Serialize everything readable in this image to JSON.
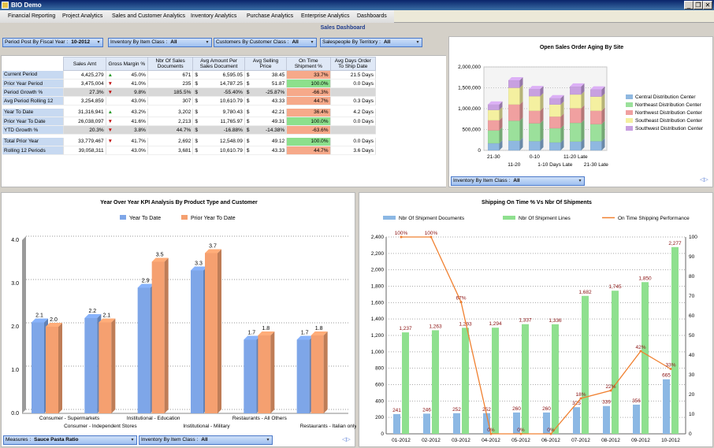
{
  "window": {
    "title": "BIO Demo",
    "minimize": "_",
    "restore": "❐",
    "close": "✕"
  },
  "menu": [
    "Financial Reporting",
    "Project Analytics",
    "Sales and Customer Analytics",
    "Inventory Analytics",
    "Purchase Analytics",
    "Enterprise Analytics",
    "Dashboards"
  ],
  "page_title": "Sales Dashboard",
  "filters": {
    "period": {
      "label": "Period Post By Fiscal Year :",
      "value": "10-2012"
    },
    "item_class": {
      "label": "Inventory By Item Class :",
      "value": "All"
    },
    "customer_class": {
      "label": "Customers By Customer Class :",
      "value": "All"
    },
    "salespeople": {
      "label": "Salespeople By Territory :",
      "value": "All"
    },
    "aging_item_class": {
      "label": "Inventory By Item Class :",
      "value": "All"
    },
    "measures": {
      "label": "Measures :",
      "value": "Sauce Pasta Ratio"
    },
    "yoy_item_class": {
      "label": "Inventory By Item Class :",
      "value": "All"
    }
  },
  "kpi_table": {
    "headers": [
      "Sales Amt",
      "Gross Margin %",
      "Nbr Of Sales Documents",
      "Avg Amount Per Sales Document",
      "Avg Selling Price",
      "On Time Shipment %",
      "Avg Days Order To Ship Date"
    ],
    "rows": [
      {
        "label": "Current Period",
        "sales": "4,425,279",
        "arrow": "up",
        "gm": "45.0%",
        "docs": "671",
        "cur1": "$",
        "avg_doc": "6,595.05",
        "cur2": "$",
        "asp": "38.45",
        "ontime": "33.7%",
        "days": "21.5 Days"
      },
      {
        "label": "Prior Year Period",
        "sales": "3,475,004",
        "arrow": "down",
        "gm": "41.0%",
        "docs": "235",
        "cur1": "$",
        "avg_doc": "14,787.25",
        "cur2": "$",
        "asp": "51.87",
        "ontime": "100.0%",
        "days": "0.0 Days"
      },
      {
        "label": "Period Growth %",
        "sales": "27.3%",
        "arrow": "down",
        "gm": "9.8%",
        "docs": "185.5%",
        "cur1": "$",
        "avg_doc": "-55.40%",
        "cur2": "$",
        "asp": "-25.87%",
        "ontime": "-66.3%",
        "days": ""
      },
      {
        "label": "Avg Period Rolling 12",
        "sales": "3,254,859",
        "arrow": "",
        "gm": "43.0%",
        "docs": "307",
        "cur1": "$",
        "avg_doc": "10,610.79",
        "cur2": "$",
        "asp": "43.33",
        "ontime": "44.7%",
        "days": "0.3 Days"
      },
      {
        "label": "Year To Date",
        "sales": "31,316,941",
        "arrow": "up",
        "gm": "43.2%",
        "docs": "3,202",
        "cur1": "$",
        "avg_doc": "9,780.43",
        "cur2": "$",
        "asp": "42.21",
        "ontime": "36.4%",
        "days": "4.2 Days"
      },
      {
        "label": "Prior Year To Date",
        "sales": "26,038,097",
        "arrow": "down",
        "gm": "41.6%",
        "docs": "2,213",
        "cur1": "$",
        "avg_doc": "11,765.97",
        "cur2": "$",
        "asp": "49.31",
        "ontime": "100.0%",
        "days": "0.0 Days"
      },
      {
        "label": "YTD Growth %",
        "sales": "20.3%",
        "arrow": "down",
        "gm": "3.8%",
        "docs": "44.7%",
        "cur1": "$",
        "avg_doc": "-16.88%",
        "cur2": "$",
        "asp": "-14.38%",
        "ontime": "-63.6%",
        "days": ""
      },
      {
        "label": "Total Prior Year",
        "sales": "33,779,467",
        "arrow": "down",
        "gm": "41.7%",
        "docs": "2,692",
        "cur1": "$",
        "avg_doc": "12,548.09",
        "cur2": "$",
        "asp": "49.12",
        "ontime": "100.0%",
        "days": "0.0 Days"
      },
      {
        "label": "Rolling 12 Periods",
        "sales": "39,058,311",
        "arrow": "",
        "gm": "43.0%",
        "docs": "3,681",
        "cur1": "$",
        "avg_doc": "10,610.79",
        "cur2": "$",
        "asp": "43.33",
        "ontime": "44.7%",
        "days": "3.6 Days"
      }
    ]
  },
  "nav_arrows": "◁▷",
  "chart_data": [
    {
      "type": "bar",
      "stacked": true,
      "title": "Open Sales Order Aging By Site",
      "categories": [
        "21-30",
        "11-20",
        "0-10",
        "1-10 Days Late",
        "11-20 Late",
        "21-30 Late"
      ],
      "y_ticks": [
        "0",
        "500,000",
        "1,000,000",
        "1,500,000",
        "2,000,000"
      ],
      "ylim": [
        0,
        2000000
      ],
      "series": [
        {
          "name": "Central Distribution Center",
          "color": "#8fb8e0",
          "values": [
            170000,
            230000,
            220000,
            190000,
            210000,
            220000
          ]
        },
        {
          "name": "Northeast Distribution Center",
          "color": "#9be09b",
          "values": [
            310000,
            480000,
            430000,
            340000,
            450000,
            410000
          ]
        },
        {
          "name": "Northwest Distribution Center",
          "color": "#f0a0a0",
          "values": [
            240000,
            390000,
            300000,
            280000,
            350000,
            320000
          ]
        },
        {
          "name": "Southeast Distribution Center",
          "color": "#f4f0a0",
          "values": [
            250000,
            400000,
            350000,
            290000,
            330000,
            340000
          ]
        },
        {
          "name": "Southwest Distribution Center",
          "color": "#c8a0e0",
          "values": [
            130000,
            180000,
            170000,
            150000,
            190000,
            170000
          ]
        }
      ],
      "legend": "right"
    },
    {
      "type": "bar",
      "title": "Year Over Year KPI Analysis By Product Type and Customer",
      "categories": [
        "Consumer - Supermarkets",
        "Consumer - Independent Stores",
        "Institutional - Education",
        "Institutional - Military",
        "Restaurants - All Others",
        "Restaurants - Italian only"
      ],
      "y_ticks": [
        "0.0",
        "1.0",
        "2.0",
        "3.0",
        "4.0"
      ],
      "ylim": [
        0,
        4
      ],
      "series": [
        {
          "name": "Year To Date",
          "color": "#7ea6e8",
          "values": [
            2.1,
            2.2,
            2.9,
            3.3,
            1.7,
            1.7
          ],
          "labels": [
            "2.1",
            "2.2",
            "2.9",
            "3.3",
            "1.7",
            "1.7"
          ]
        },
        {
          "name": "Prior Year To Date",
          "color": "#f5a070",
          "values": [
            2.0,
            2.1,
            3.5,
            3.7,
            1.8,
            1.8
          ],
          "labels": [
            "2.0",
            "2.1",
            "3.5",
            "3.7",
            "1.8",
            "1.8"
          ]
        }
      ],
      "legend": "top"
    },
    {
      "type": "bar",
      "title": "Shipping On Time % Vs Nbr Of Shipments",
      "categories": [
        "01-2012",
        "02-2012",
        "03-2012",
        "04-2012",
        "05-2012",
        "06-2012",
        "07-2012",
        "08-2012",
        "09-2012",
        "10-2012"
      ],
      "y_ticks": [
        "0",
        "200",
        "400",
        "600",
        "800",
        "1,000",
        "1,200",
        "1,400",
        "1,600",
        "1,800",
        "2,000",
        "2,200",
        "2,400"
      ],
      "ylim": [
        0,
        2400
      ],
      "y2_ticks": [
        "0",
        "10",
        "20",
        "30",
        "40",
        "50",
        "60",
        "70",
        "80",
        "90",
        "100"
      ],
      "y2lim": [
        0,
        100
      ],
      "series": [
        {
          "name": "Nbr Of Shipment Documents",
          "color": "#8cb8e4",
          "values": [
            241,
            246,
            252,
            252,
            260,
            260,
            325,
            339,
            356,
            665
          ],
          "labels": [
            "241",
            "246",
            "252",
            "252",
            "260",
            "260",
            "325",
            "339",
            "356",
            "665"
          ]
        },
        {
          "name": "Nbr Of Shipment Lines",
          "color": "#8fe08f",
          "values": [
            1237,
            1263,
            1293,
            1294,
            1337,
            1336,
            1682,
            1745,
            1850,
            2277
          ],
          "labels": [
            "1,237",
            "1,263",
            "1,293",
            "1,294",
            "1,337",
            "1,336",
            "1,682",
            "1,745",
            "1,850",
            "2,277"
          ]
        },
        {
          "name": "On Time Shipping Performance",
          "color": "#f08030",
          "type": "line",
          "axis": "secondary",
          "values": [
            100,
            100,
            67,
            0,
            0,
            0,
            18,
            22,
            42,
            33
          ],
          "labels": [
            "100%",
            "100%",
            "67%",
            "0%",
            "0%",
            "0%",
            "18%",
            "22%",
            "42%",
            "33%"
          ]
        }
      ],
      "legend": "top"
    }
  ]
}
